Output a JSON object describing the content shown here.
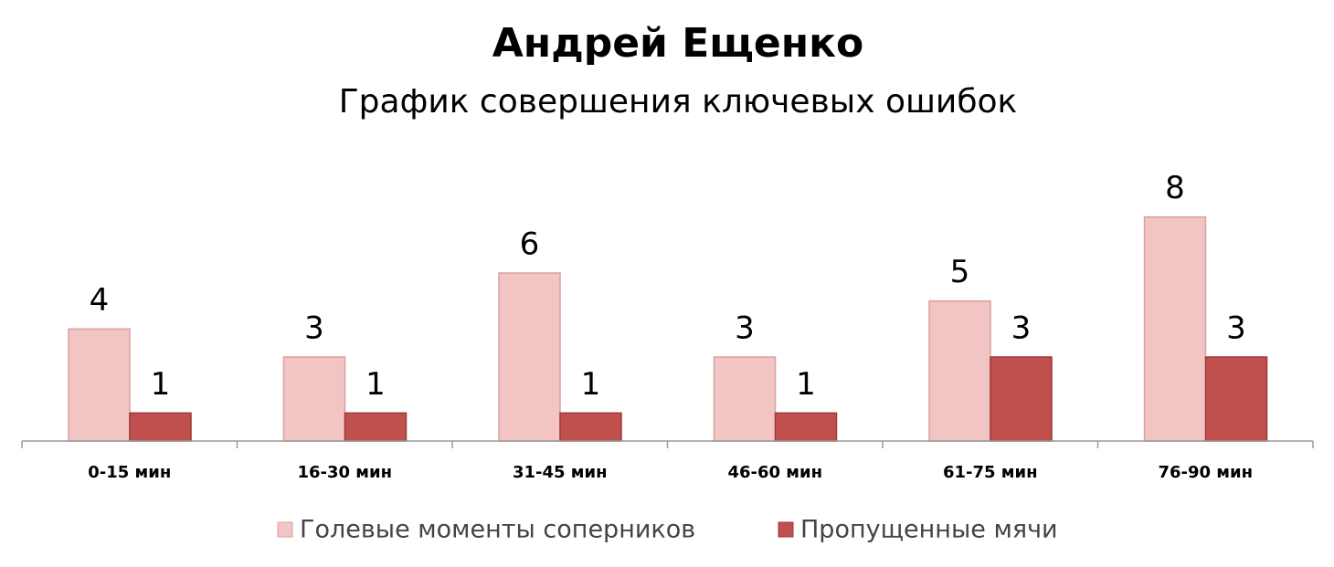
{
  "chart_data": {
    "type": "bar",
    "title": "Андрей Ещенко",
    "subtitle": "График совершения ключевых ошибок",
    "categories": [
      "0-15 мин",
      "16-30 мин",
      "31-45 мин",
      "46-60 мин",
      "61-75 мин",
      "76-90 мин"
    ],
    "series": [
      {
        "name": "Голевые моменты соперников",
        "color": "#f2c4c4",
        "values": [
          4,
          3,
          6,
          3,
          5,
          8
        ]
      },
      {
        "name": "Пропущенные мячи",
        "color": "#c0504d",
        "values": [
          1,
          1,
          1,
          1,
          3,
          3
        ]
      }
    ],
    "ylim": [
      0,
      9
    ],
    "legend": "bottom"
  }
}
